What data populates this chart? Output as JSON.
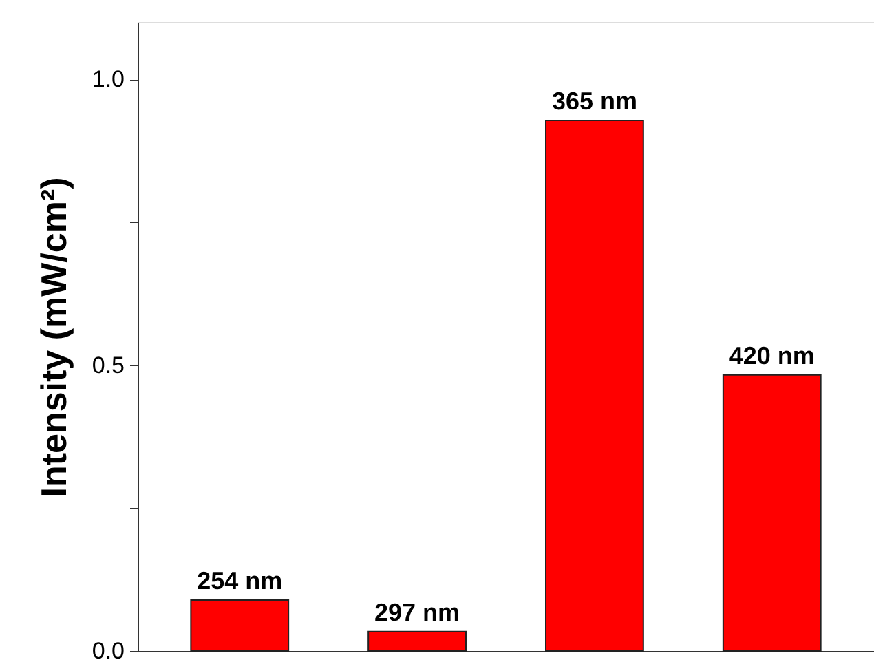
{
  "chart_data": {
    "type": "bar",
    "ylabel": "Intensity (mW/cm²)",
    "categories": [
      "254 nm",
      "297 nm",
      "365 nm",
      "420 nm"
    ],
    "values": [
      0.089,
      0.034,
      0.928,
      0.483
    ],
    "color": "#ff0000",
    "ylim": [
      0,
      1.1
    ],
    "yticks": [
      {
        "value": 0,
        "label": "0.0"
      },
      {
        "value": 0.25,
        "label": null
      },
      {
        "value": 0.5,
        "label": "0.5"
      },
      {
        "value": 0.75,
        "label": null
      },
      {
        "value": 1,
        "label": "1.0"
      }
    ],
    "grid": false
  }
}
